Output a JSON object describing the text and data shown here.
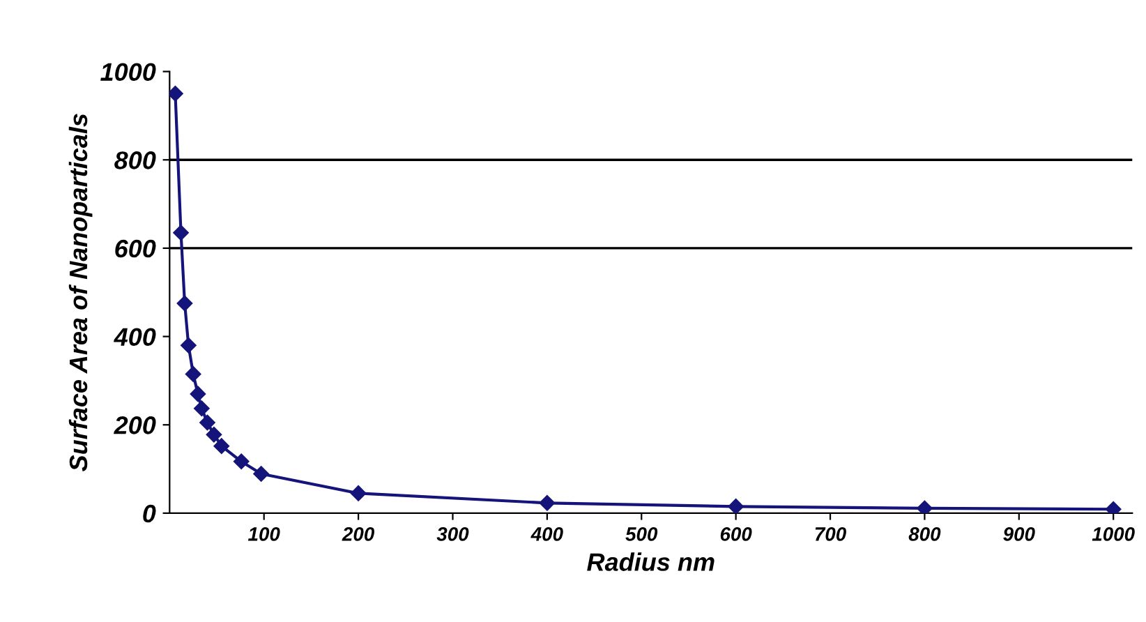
{
  "chart_data": {
    "type": "line",
    "xlabel": "Radius nm",
    "ylabel": "Surface Area of Nanoparticals",
    "x": [
      6,
      12,
      16,
      20,
      25,
      30,
      34,
      40,
      47,
      55,
      76,
      97,
      200,
      400,
      600,
      800,
      1000
    ],
    "series": [
      {
        "color": "#14147a",
        "values": [
          950,
          635,
          475,
          380,
          315,
          270,
          237,
          205,
          178,
          152,
          117,
          89,
          45,
          23,
          15,
          11,
          9
        ]
      }
    ],
    "marker": "diamond",
    "xlim": [
      0,
      1020
    ],
    "xticks": [
      100,
      200,
      300,
      400,
      500,
      600,
      700,
      800,
      900,
      1000
    ],
    "ylim": [
      0,
      1000
    ],
    "yticks": [
      0,
      200,
      400,
      600,
      800,
      1000
    ],
    "ref_lines": [
      {
        "axis": "y",
        "value": 600,
        "color": "#000000"
      },
      {
        "axis": "y",
        "value": 800,
        "color": "#000000"
      }
    ]
  }
}
